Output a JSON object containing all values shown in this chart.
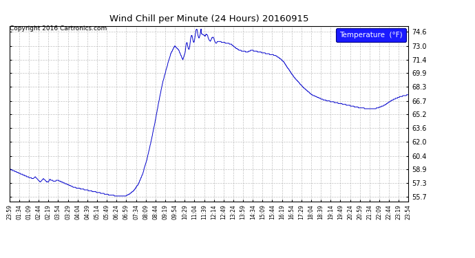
{
  "title": "Wind Chill per Minute (24 Hours) 20160915",
  "copyright": "Copyright 2016 Cartronics.com",
  "legend_label": "Temperature  (°F)",
  "line_color": "#0000CC",
  "background_color": "#ffffff",
  "grid_color": "#b0b0b0",
  "yticks": [
    55.7,
    57.3,
    58.9,
    60.4,
    62.0,
    63.6,
    65.2,
    66.7,
    68.3,
    69.9,
    71.4,
    73.0,
    74.6
  ],
  "ylim": [
    55.2,
    75.3
  ],
  "xtick_labels": [
    "23:59",
    "01:34",
    "01:09",
    "02:44",
    "02:19",
    "03:54",
    "03:29",
    "04:04",
    "04:39",
    "05:14",
    "05:49",
    "06:24",
    "06:59",
    "07:34",
    "08:09",
    "08:44",
    "09:19",
    "09:54",
    "10:29",
    "11:04",
    "11:39",
    "12:14",
    "12:49",
    "13:24",
    "13:59",
    "14:34",
    "15:09",
    "15:44",
    "16:19",
    "16:54",
    "17:29",
    "18:04",
    "18:39",
    "19:14",
    "19:49",
    "20:24",
    "20:59",
    "21:34",
    "22:09",
    "22:44",
    "23:19",
    "23:54"
  ],
  "data_y": [
    58.9,
    58.7,
    58.5,
    58.3,
    58.1,
    57.9,
    57.8,
    57.7,
    57.6,
    57.5,
    57.7,
    57.5,
    57.6,
    57.4,
    57.2,
    57.0,
    56.8,
    56.7,
    56.6,
    56.5,
    56.4,
    56.3,
    56.2,
    56.1,
    56.0,
    55.9,
    55.85,
    55.8,
    55.75,
    55.85,
    56.1,
    56.5,
    57.2,
    58.3,
    59.8,
    61.8,
    64.0,
    66.5,
    68.8,
    70.5,
    72.1,
    73.0,
    72.5,
    71.4,
    72.9,
    73.5,
    74.2,
    74.5,
    74.3,
    74.0,
    73.8,
    73.6,
    73.5,
    73.4,
    73.3,
    73.2,
    72.8,
    72.5,
    72.4,
    72.3,
    72.5,
    72.4,
    72.3,
    72.2,
    72.1,
    72.0,
    71.9,
    71.6,
    71.2,
    70.5,
    69.8,
    69.2,
    68.7,
    68.2,
    67.8,
    67.4,
    67.2,
    67.0,
    66.8,
    66.7,
    66.6,
    66.5,
    66.4,
    66.3,
    66.2,
    66.1,
    66.0,
    65.9,
    65.85,
    65.8,
    65.75,
    65.85,
    66.0,
    66.2,
    66.5,
    66.8,
    67.0,
    67.2,
    67.3,
    67.4
  ]
}
